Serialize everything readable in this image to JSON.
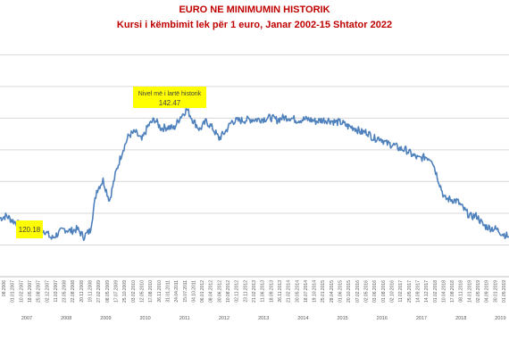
{
  "chart_data": {
    "type": "line",
    "title": "EURO NE MINIMUMIN HISTORIK",
    "subtitle": "Kursi i këmbimit lek për 1 euro, Janar 2002-15 Shtator 2022",
    "xlabel": "",
    "ylabel": "",
    "ylim": [
      115,
      153
    ],
    "grid": true,
    "legend": "none",
    "line_color": "#4f81bd",
    "annotation_color": "#ffff00",
    "annotations": [
      {
        "label": "",
        "value": "120.18",
        "x": "2007-12"
      },
      {
        "label": "Nivel më i lartë historik",
        "value": "142.47",
        "x": "2010-06"
      }
    ],
    "x_tick_labels": [
      "08.2006",
      "01.01.2007",
      "10.02.2007",
      "18.05.2007",
      "25.08.2007",
      "02.12.2007",
      "11.03.2007",
      "23.05.2008",
      "22.08.2008",
      "20.11.2008",
      "19.11.2008",
      "27.02.2009",
      "08.05.2009",
      "17.07.2009",
      "25.10.2009",
      "03.02.2010",
      "12.05.2010",
      "17.08.2010",
      "26.11.2010",
      "31.01.2011",
      "24.04.2011",
      "15.07.2011",
      "04.10.2011",
      "06.01.2012",
      "08.04.2012",
      "30.06.2012",
      "10.08.2012",
      "02.11.2012",
      "23.11.2012",
      "21.02.2013",
      "11.06.2013",
      "18.09.2013",
      "26.11.2013",
      "21.02.2014",
      "30.05.2014",
      "18.07.2014",
      "19.10.2014",
      "25.01.2015",
      "28.04.2015",
      "01.06.2015",
      "20.10.2015",
      "07.02.2016",
      "02.05.2016",
      "03.06.2016",
      "01.08.2016",
      "02.10.2016",
      "11.02.2017",
      "25.05.2017",
      "14.09.2017",
      "14.12.2017",
      "01.02.2018",
      "10.04.2018",
      "17.08.2018",
      "08.11.2018",
      "14.01.2019",
      "02.05.2019",
      "04.09.2019",
      "30.01.2019",
      "01.05.2019"
    ],
    "year_labels": [
      "2007",
      "2008",
      "2009",
      "2010",
      "2011",
      "2012",
      "2013",
      "2014",
      "2015",
      "2016",
      "2017",
      "2018",
      "2019"
    ],
    "x": [
      "2006-08",
      "2006-10",
      "2006-12",
      "2007-02",
      "2007-04",
      "2007-06",
      "2007-08",
      "2007-10",
      "2007-12",
      "2008-02",
      "2008-04",
      "2008-06",
      "2008-08",
      "2008-10",
      "2008-12",
      "2009-02",
      "2009-04",
      "2009-06",
      "2009-08",
      "2009-10",
      "2009-12",
      "2010-02",
      "2010-04",
      "2010-06",
      "2010-08",
      "2010-10",
      "2010-12",
      "2011-02",
      "2011-04",
      "2011-06",
      "2011-08",
      "2011-10",
      "2011-12",
      "2012-02",
      "2012-04",
      "2012-06",
      "2012-08",
      "2012-10",
      "2012-12",
      "2013-02",
      "2013-04",
      "2013-06",
      "2013-08",
      "2013-10",
      "2013-12",
      "2014-02",
      "2014-04",
      "2014-06",
      "2014-08",
      "2014-10",
      "2014-12",
      "2015-02",
      "2015-04",
      "2015-06",
      "2015-08",
      "2015-10",
      "2015-12",
      "2016-02",
      "2016-04",
      "2016-06",
      "2016-08",
      "2016-10",
      "2016-12",
      "2017-02",
      "2017-04",
      "2017-06",
      "2017-08",
      "2017-10",
      "2017-12",
      "2018-02",
      "2018-04",
      "2018-06",
      "2018-08",
      "2018-10",
      "2018-12",
      "2019-02",
      "2019-04",
      "2019-06",
      "2019-08",
      "2019-10"
    ],
    "values": [
      124.2,
      124.6,
      123.8,
      123.2,
      122.9,
      123.5,
      122.6,
      122.2,
      121.0,
      121.8,
      122.5,
      122.2,
      122.5,
      121.3,
      122.3,
      128.6,
      130.2,
      127.0,
      131.5,
      134.8,
      137.3,
      137.8,
      136.5,
      138.8,
      139.8,
      138.4,
      138.6,
      138.4,
      140.2,
      141.4,
      139.6,
      138.2,
      139.5,
      138.4,
      136.8,
      137.9,
      139.5,
      139.6,
      139.7,
      139.8,
      139.8,
      139.9,
      140.1,
      139.7,
      140.1,
      140.1,
      139.7,
      139.8,
      139.8,
      139.5,
      139.7,
      139.7,
      139.4,
      139.3,
      138.7,
      138.5,
      137.8,
      137.8,
      136.8,
      136.9,
      136.0,
      135.8,
      135.2,
      135.0,
      134.2,
      133.6,
      133.9,
      133.6,
      130.4,
      127.3,
      127.2,
      126.9,
      125.6,
      124.5,
      124.6,
      123.1,
      122.7,
      122.5,
      121.8,
      121.3
    ]
  }
}
